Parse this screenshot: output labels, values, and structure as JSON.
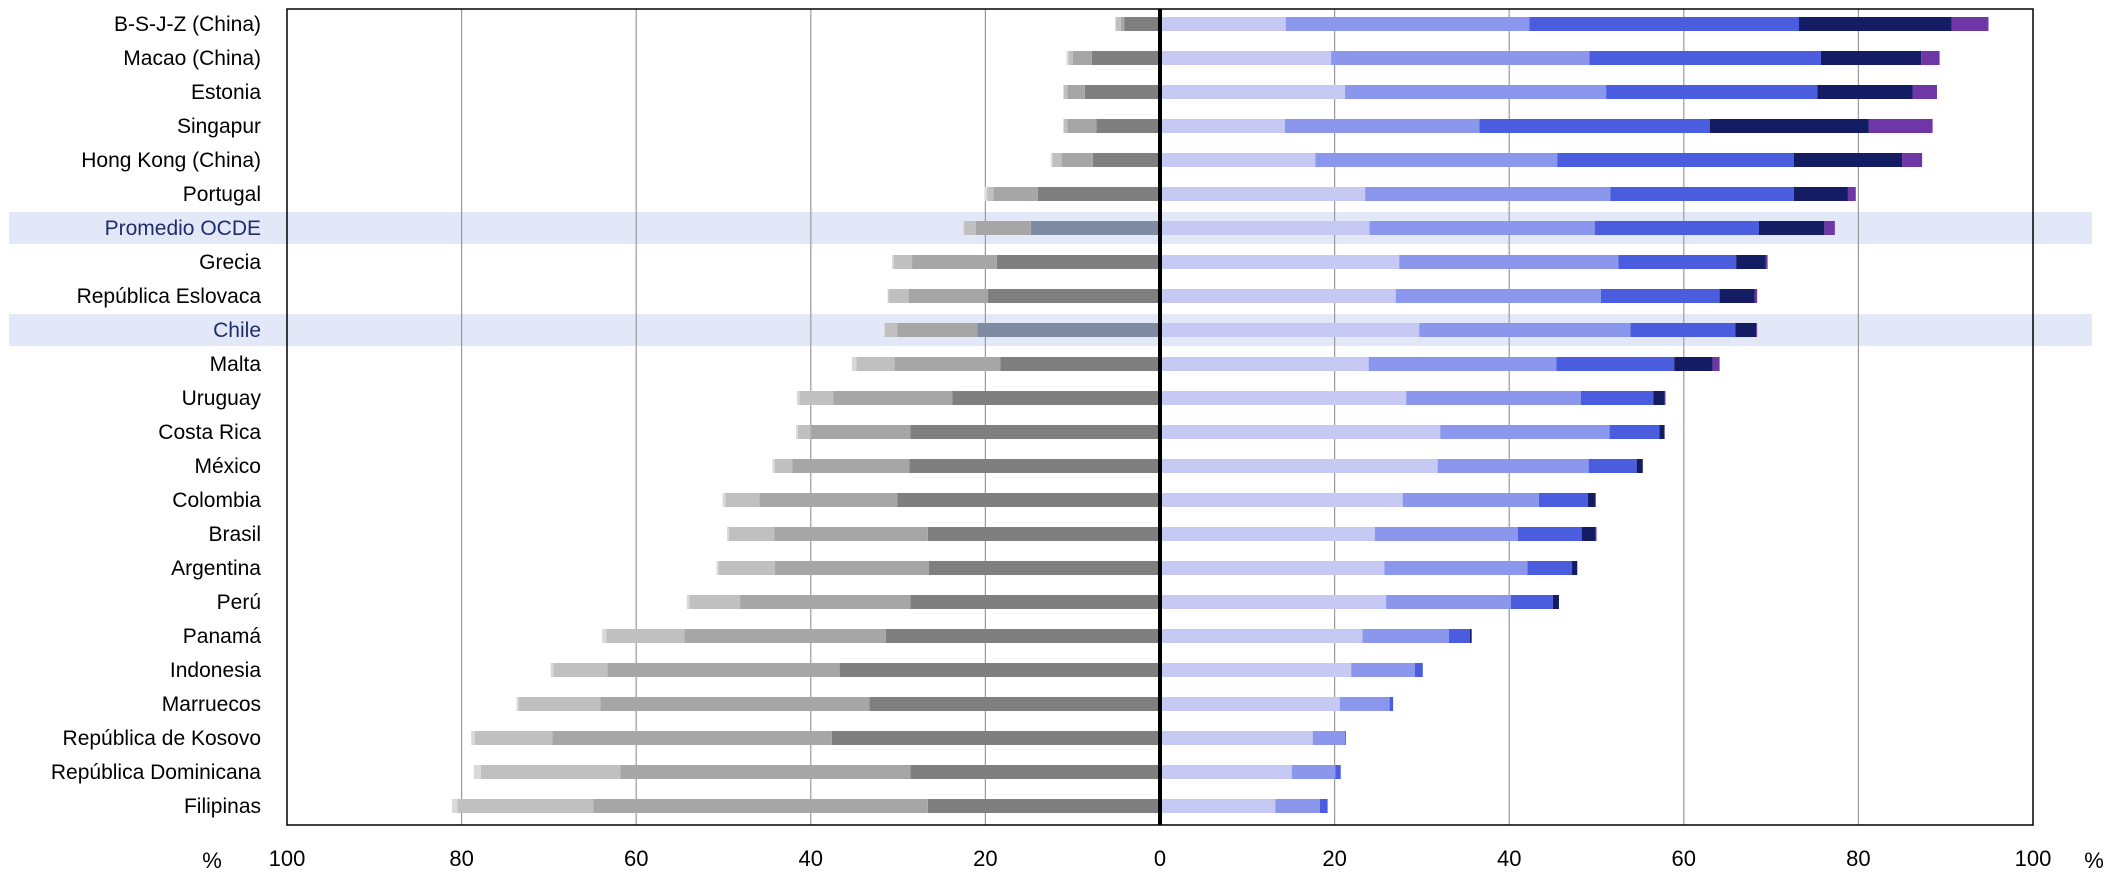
{
  "chart_data": {
    "type": "bar",
    "orientation": "horizontal",
    "stacked": "diverging",
    "x_range": [
      -100,
      100
    ],
    "x_tick_values": [
      -100,
      -80,
      -60,
      -40,
      -20,
      0,
      20,
      40,
      60,
      80,
      100
    ],
    "x_tick_labels": [
      "100",
      "80",
      "60",
      "40",
      "20",
      "0",
      "20",
      "40",
      "60",
      "80",
      "100"
    ],
    "x_unit_left": "%",
    "x_unit_right": "%",
    "grid": "vertical",
    "legend": "none",
    "highlighted_categories": [
      "Promedio OCDE",
      "Chile"
    ],
    "highlight_color": "#e3e8f8",
    "highlight_bar_color": "#7f8aa3",
    "negative_colors": [
      "#7f7f7f",
      "#a6a6a6",
      "#c0c0c0",
      "#d9d9d9"
    ],
    "positive_colors": [
      "#c5c9f4",
      "#8a97ec",
      "#4b5ddf",
      "#141c64",
      "#6f36a5"
    ],
    "categories": [
      "B-S-J-Z (China)",
      "Macao (China)",
      "Estonia",
      "Singapur",
      "Hong Kong (China)",
      "Portugal",
      "Promedio OCDE",
      "Grecia",
      "República Eslovaca",
      "Chile",
      "Malta",
      "Uruguay",
      "Costa Rica",
      "México",
      "Colombia",
      "Brasil",
      "Argentina",
      "Perú",
      "Panamá",
      "Indonesia",
      "Marruecos",
      "República de Kosovo",
      "República Dominicana",
      "Filipinas"
    ],
    "negative_series": [
      {
        "values": [
          -4.1,
          -7.8,
          -8.6,
          -7.3,
          -7.7,
          -14.0,
          -14.8,
          -18.7,
          -19.7,
          -20.9,
          -18.3,
          -23.8,
          -28.6,
          -28.7,
          -30.1,
          -26.6,
          -26.5,
          -28.6,
          -31.4,
          -36.7,
          -33.3,
          -37.6,
          -28.6,
          -26.6
        ]
      },
      {
        "values": [
          -0.4,
          -2.2,
          -2.0,
          -3.3,
          -3.6,
          -5.1,
          -6.3,
          -9.7,
          -9.1,
          -9.2,
          -12.1,
          -13.6,
          -11.4,
          -13.4,
          -15.8,
          -17.6,
          -17.6,
          -19.5,
          -23.1,
          -26.6,
          -30.8,
          -32.0,
          -33.2,
          -38.3
        ]
      },
      {
        "values": [
          -0.6,
          -0.5,
          -0.4,
          -0.4,
          -1.0,
          -0.7,
          -1.3,
          -2.1,
          -2.3,
          -1.4,
          -4.4,
          -3.9,
          -1.5,
          -2.0,
          -3.9,
          -5.2,
          -6.5,
          -5.8,
          -8.9,
          -6.2,
          -9.4,
          -8.9,
          -16.0,
          -15.6
        ]
      },
      {
        "values": [
          0,
          -0.2,
          -0.1,
          -0.1,
          -0.2,
          -0.3,
          -0.2,
          -0.2,
          -0.1,
          -0.1,
          -0.5,
          -0.3,
          -0.2,
          -0.3,
          -0.3,
          -0.2,
          -0.2,
          -0.3,
          -0.5,
          -0.3,
          -0.2,
          -0.4,
          -0.8,
          -0.6
        ]
      }
    ],
    "positive_series": [
      {
        "values": [
          14.4,
          19.6,
          21.2,
          14.3,
          17.8,
          23.5,
          24.0,
          27.4,
          27.0,
          29.7,
          23.9,
          28.2,
          32.1,
          31.8,
          27.8,
          24.6,
          25.7,
          25.9,
          23.2,
          21.9,
          20.6,
          17.5,
          15.1,
          13.2
        ]
      },
      {
        "values": [
          27.9,
          29.6,
          29.9,
          22.3,
          27.7,
          28.1,
          25.8,
          25.1,
          23.5,
          24.2,
          21.5,
          20.0,
          19.4,
          17.3,
          15.6,
          16.4,
          16.4,
          14.3,
          9.9,
          7.3,
          5.7,
          3.7,
          5.0,
          5.1
        ]
      },
      {
        "values": [
          30.9,
          26.5,
          24.2,
          26.4,
          27.1,
          21.0,
          18.8,
          13.5,
          13.6,
          12.0,
          13.5,
          8.3,
          5.7,
          5.5,
          5.6,
          7.3,
          5.1,
          4.8,
          2.4,
          0.9,
          0.4,
          0.1,
          0.6,
          0.9
        ]
      },
      {
        "values": [
          17.5,
          11.5,
          10.9,
          18.2,
          12.4,
          6.2,
          7.5,
          3.4,
          4.0,
          2.4,
          4.4,
          1.3,
          0.6,
          0.7,
          0.9,
          1.6,
          0.6,
          0.7,
          0.2,
          0.0,
          0.0,
          0.0,
          0.0,
          0.0
        ]
      },
      {
        "values": [
          4.2,
          2.1,
          2.8,
          7.3,
          2.3,
          0.9,
          1.2,
          0.2,
          0.3,
          0.1,
          0.8,
          0.1,
          0.0,
          0.0,
          0.0,
          0.1,
          0.0,
          0.0,
          0.0,
          0.0,
          0.0,
          0.0,
          0.0,
          0.0
        ]
      }
    ]
  }
}
